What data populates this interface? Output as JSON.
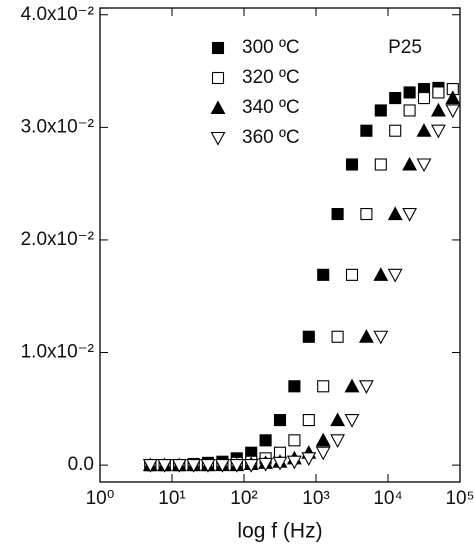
{
  "chart_data": {
    "type": "scatter",
    "xlabel": "log f (Hz)",
    "annotation": "P25",
    "log_x": true,
    "x": [
      5.0,
      7.9,
      12.6,
      20.0,
      31.6,
      50.1,
      79.4,
      125.9,
      199.5,
      316.2,
      501.2,
      794.3,
      1258.9,
      1995.3,
      3162.3,
      5011.9,
      7943.3,
      12589,
      19953,
      31623,
      50119,
      79433
    ],
    "series": [
      {
        "name": "300 ºC",
        "marker": "square-filled",
        "color": "#000000",
        "values": [
          0,
          0,
          0,
          0.0001,
          0.0002,
          0.0003,
          0.0006,
          0.0011,
          0.0022,
          0.004,
          0.007,
          0.0114,
          0.0169,
          0.0223,
          0.0267,
          0.0297,
          0.0315,
          0.0326,
          0.0331,
          0.0334,
          0.0335,
          null
        ]
      },
      {
        "name": "320 ºC",
        "marker": "square-open",
        "color": "#000000",
        "values": [
          0,
          0,
          0,
          0,
          0,
          0.0001,
          0.0002,
          0.0003,
          0.0006,
          0.0011,
          0.0022,
          0.004,
          0.007,
          0.0114,
          0.0169,
          0.0223,
          0.0267,
          0.0297,
          0.0315,
          0.0326,
          0.0331,
          0.0334
        ]
      },
      {
        "name": "340 ºC",
        "marker": "triangle-up-filled",
        "color": "#000000",
        "values": [
          0,
          0,
          0,
          0,
          0,
          0,
          0,
          0.0001,
          0.0002,
          0.0003,
          0.0006,
          0.0011,
          0.0022,
          0.004,
          0.007,
          0.0114,
          0.0169,
          0.0223,
          0.0267,
          0.0297,
          0.0315,
          0.0326
        ]
      },
      {
        "name": "360 ºC",
        "marker": "triangle-down-open",
        "color": "#000000",
        "values": [
          0,
          0,
          0,
          0,
          0,
          0,
          0,
          0,
          0.0001,
          0.0002,
          0.0003,
          0.0006,
          0.0011,
          0.0022,
          0.004,
          0.007,
          0.0114,
          0.0169,
          0.0223,
          0.0267,
          0.0297,
          0.0315
        ]
      }
    ],
    "xlim": [
      1,
      100000
    ],
    "xticks": [
      {
        "value": 1,
        "label": "10⁰"
      },
      {
        "value": 10,
        "label": "10¹"
      },
      {
        "value": 100,
        "label": "10²"
      },
      {
        "value": 1000,
        "label": "10³"
      },
      {
        "value": 10000,
        "label": "10⁴"
      },
      {
        "value": 100000,
        "label": "10⁵"
      }
    ],
    "ylim": [
      -0.0015,
      0.0406
    ],
    "yticks": [
      {
        "value": 0,
        "label": "0.0"
      },
      {
        "value": 0.01,
        "label": "1.0x10⁻²"
      },
      {
        "value": 0.02,
        "label": "2.0x10⁻²"
      },
      {
        "value": 0.03,
        "label": "3.0x10⁻²"
      },
      {
        "value": 0.04,
        "label": "4.0x10⁻²"
      }
    ],
    "legend": "top-center"
  }
}
